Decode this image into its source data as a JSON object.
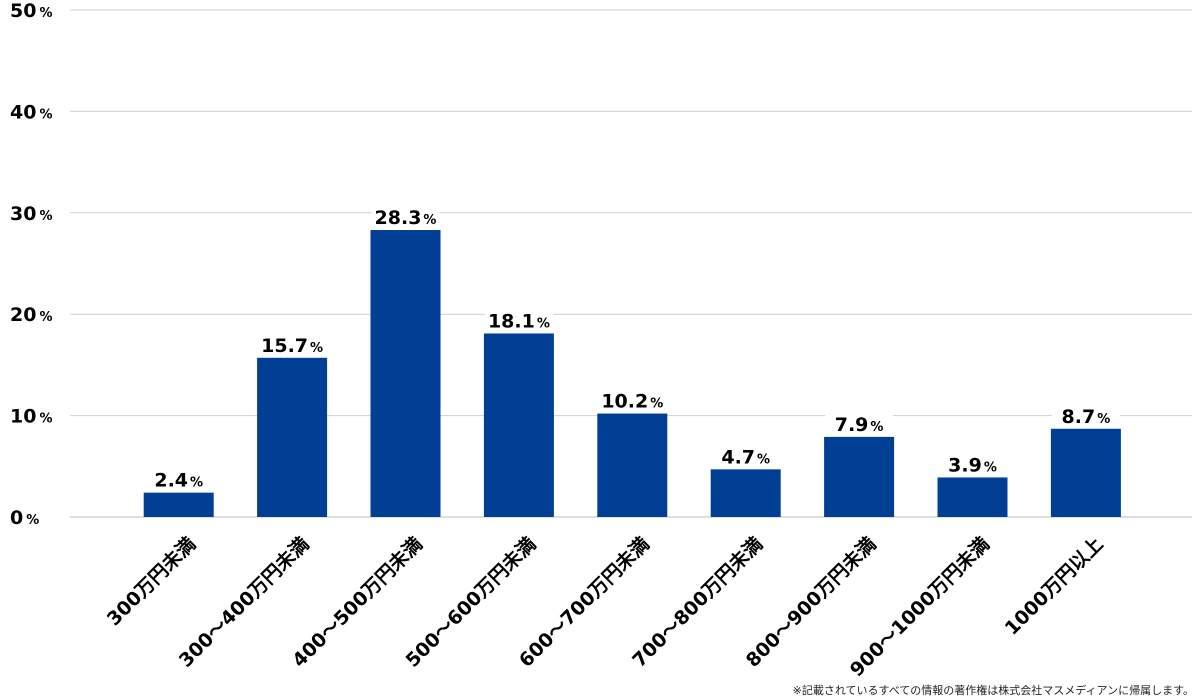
{
  "chart_data": {
    "type": "bar",
    "categories": [
      "300万円未満",
      "300～400万円未満",
      "400～500万円未満",
      "500～600万円未満",
      "600～700万円未満",
      "700～800万円未満",
      "800～900万円未満",
      "900～1000万円未満",
      "1000万円以上"
    ],
    "values": [
      2.4,
      15.7,
      28.3,
      18.1,
      10.2,
      4.7,
      7.9,
      3.9,
      8.7
    ],
    "value_labels": [
      "2.4",
      "15.7",
      "28.3",
      "18.1",
      "10.2",
      "4.7",
      "7.9",
      "3.9",
      "8.7"
    ],
    "unit": "%",
    "yticks": [
      "0",
      "10",
      "20",
      "30",
      "40",
      "50"
    ],
    "ylim": [
      0,
      50
    ],
    "grid": true,
    "bar_color": "#003f94",
    "title": "",
    "xlabel": "",
    "ylabel": ""
  },
  "footer": {
    "copyright": "※記載されているすべての情報の著作権は株式会社マスメディアンに帰属します。"
  }
}
